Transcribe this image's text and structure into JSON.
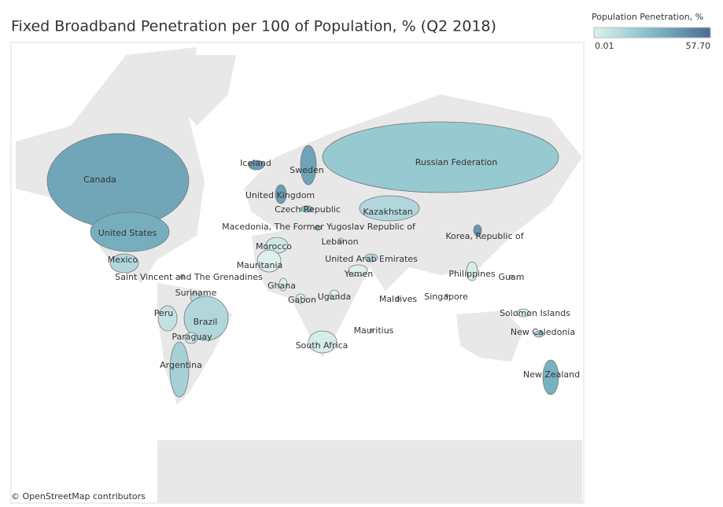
{
  "chart_data": {
    "type": "choropleth",
    "title": "Fixed Broadband Penetration per 100 of Population, % (Q2 2018)",
    "legend": {
      "title": "Population Penetration, %",
      "range": [
        0.01,
        {
          "value": 57.7,
          "label": "57.70"
        }
      ]
    },
    "attribution": "© OpenStreetMap contributors",
    "countries": [
      {
        "name": "Canada",
        "value": 37
      },
      {
        "name": "United States",
        "value": 34
      },
      {
        "name": "Mexico",
        "value": 14
      },
      {
        "name": "Saint Vincent and The Grenadines",
        "value": 20
      },
      {
        "name": "Suriname",
        "value": 12
      },
      {
        "name": "Peru",
        "value": 8
      },
      {
        "name": "Brazil",
        "value": 14
      },
      {
        "name": "Paraguay",
        "value": 5
      },
      {
        "name": "Argentina",
        "value": 18
      },
      {
        "name": "Iceland",
        "value": 40
      },
      {
        "name": "Sweden",
        "value": 38
      },
      {
        "name": "United Kingdom",
        "value": 40
      },
      {
        "name": "Czech Republic",
        "value": 30
      },
      {
        "name": "Macedonia, The Former Yugoslav Republic of",
        "value": 19
      },
      {
        "name": "Lebanon",
        "value": 8
      },
      {
        "name": "Morocco",
        "value": 5
      },
      {
        "name": "Mauritania",
        "value": 0.5
      },
      {
        "name": "United Arab Emirates",
        "value": 13
      },
      {
        "name": "Yemen",
        "value": 0.8
      },
      {
        "name": "Ghana",
        "value": 0.3
      },
      {
        "name": "Gabon",
        "value": 1
      },
      {
        "name": "Uganda",
        "value": 0.2
      },
      {
        "name": "Maldives",
        "value": 8
      },
      {
        "name": "South Africa",
        "value": 3
      },
      {
        "name": "Mauritius",
        "value": 19
      },
      {
        "name": "Kazakhstan",
        "value": 14
      },
      {
        "name": "Russian Federation",
        "value": 22
      },
      {
        "name": "Korea, Republic of",
        "value": 42
      },
      {
        "name": "Philippines",
        "value": 3
      },
      {
        "name": "Guam",
        "value": 15
      },
      {
        "name": "Singapore",
        "value": 26
      },
      {
        "name": "Solomon Islands",
        "value": 0.2
      },
      {
        "name": "New Caledonia",
        "value": 18
      },
      {
        "name": "New Zealand",
        "value": 33
      }
    ]
  }
}
